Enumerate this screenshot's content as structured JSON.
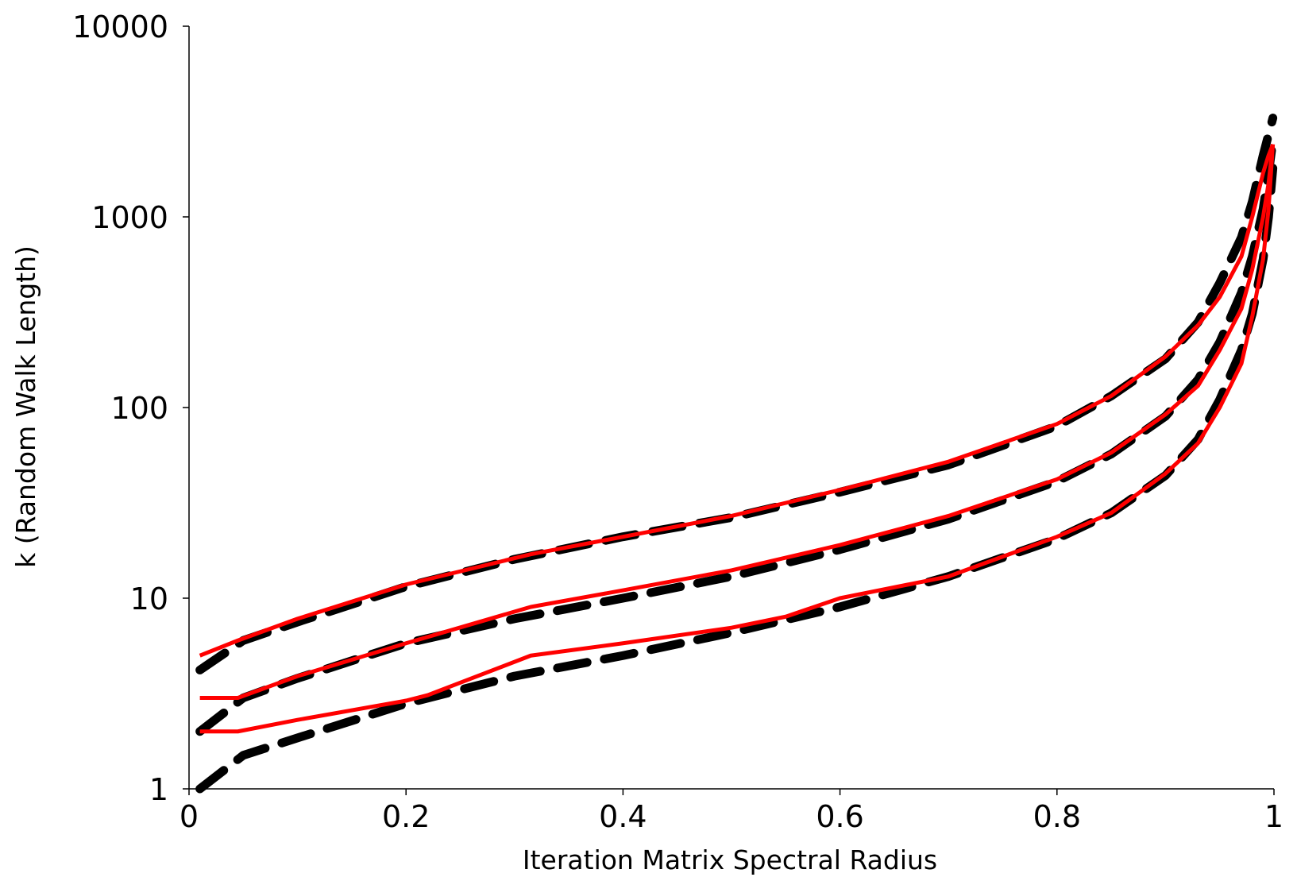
{
  "chart_data": {
    "type": "line",
    "xlabel": "Iteration Matrix Spectral Radius",
    "ylabel": "k (Random Walk Length)",
    "xlim": [
      0,
      1
    ],
    "ylim": [
      1,
      10000
    ],
    "yscale": "log",
    "grid": false,
    "xticks": [
      {
        "value": 0,
        "label": "0"
      },
      {
        "value": 0.2,
        "label": "0.2"
      },
      {
        "value": 0.4,
        "label": "0.4"
      },
      {
        "value": 0.6,
        "label": "0.6"
      },
      {
        "value": 0.8,
        "label": "0.8"
      },
      {
        "value": 1,
        "label": "1"
      }
    ],
    "yticks": [
      {
        "value": 1,
        "label": "1"
      },
      {
        "value": 10,
        "label": "10"
      },
      {
        "value": 100,
        "label": "100"
      },
      {
        "value": 1000,
        "label": "1000"
      },
      {
        "value": 10000,
        "label": "10000"
      }
    ],
    "colors": {
      "dashed": "#000000",
      "solid": "#ff0000",
      "axis": "#000000"
    },
    "series": [
      {
        "style": "dashed",
        "color": "#000000",
        "x": [
          0.01,
          0.05,
          0.1,
          0.2,
          0.3,
          0.4,
          0.5,
          0.6,
          0.7,
          0.8,
          0.85,
          0.9,
          0.93,
          0.95,
          0.97,
          0.98,
          0.99,
          0.995,
          0.999
        ],
        "y": [
          4.2,
          6.0,
          7.5,
          11.5,
          16,
          21,
          26.5,
          36,
          50,
          80,
          115,
          180,
          280,
          450,
          780,
          1200,
          2100,
          2700,
          3300
        ]
      },
      {
        "style": "dashed",
        "color": "#000000",
        "x": [
          0.01,
          0.05,
          0.1,
          0.2,
          0.3,
          0.4,
          0.5,
          0.6,
          0.7,
          0.8,
          0.85,
          0.9,
          0.93,
          0.95,
          0.97,
          0.98,
          0.99,
          0.995,
          0.999
        ],
        "y": [
          2.0,
          3.0,
          3.8,
          5.8,
          7.8,
          10,
          13,
          18,
          26,
          41,
          57,
          90,
          140,
          220,
          400,
          620,
          1100,
          1700,
          2500
        ]
      },
      {
        "style": "dashed",
        "color": "#000000",
        "x": [
          0.01,
          0.05,
          0.1,
          0.2,
          0.3,
          0.4,
          0.5,
          0.6,
          0.7,
          0.8,
          0.85,
          0.9,
          0.93,
          0.95,
          0.97,
          0.98,
          0.99,
          0.995,
          0.999
        ],
        "y": [
          1.0,
          1.5,
          1.85,
          2.8,
          3.9,
          5.0,
          6.6,
          9.0,
          13,
          20.5,
          28,
          44,
          68,
          110,
          200,
          310,
          600,
          1000,
          1800
        ]
      },
      {
        "style": "solid",
        "color": "#ff0000",
        "x": [
          0.01,
          0.045,
          0.1,
          0.2,
          0.315,
          0.4,
          0.5,
          0.6,
          0.7,
          0.8,
          0.85,
          0.9,
          0.93,
          0.95,
          0.97,
          0.98,
          0.99,
          0.995,
          0.999
        ],
        "y": [
          5.0,
          6.0,
          7.8,
          11.8,
          17,
          21,
          27,
          37,
          52,
          82,
          115,
          185,
          270,
          380,
          620,
          1000,
          1700,
          2100,
          2400
        ]
      },
      {
        "style": "solid",
        "color": "#ff0000",
        "x": [
          0.01,
          0.045,
          0.1,
          0.2,
          0.315,
          0.4,
          0.5,
          0.6,
          0.7,
          0.8,
          0.85,
          0.9,
          0.93,
          0.95,
          0.97,
          0.98,
          0.99,
          0.995,
          0.999
        ],
        "y": [
          3.0,
          3.0,
          3.9,
          5.8,
          9.0,
          11,
          14,
          19,
          27,
          42,
          58,
          92,
          130,
          200,
          330,
          530,
          1000,
          1500,
          2400
        ]
      },
      {
        "style": "solid",
        "color": "#ff0000",
        "x": [
          0.01,
          0.045,
          0.1,
          0.2,
          0.22,
          0.315,
          0.4,
          0.5,
          0.55,
          0.6,
          0.7,
          0.8,
          0.85,
          0.9,
          0.93,
          0.95,
          0.97,
          0.98,
          0.99,
          0.995,
          0.999
        ],
        "y": [
          2.0,
          2.0,
          2.3,
          2.9,
          3.1,
          5.0,
          5.8,
          7.0,
          8.0,
          10,
          13,
          21,
          28,
          45,
          65,
          100,
          170,
          300,
          600,
          1100,
          2400
        ]
      }
    ]
  }
}
